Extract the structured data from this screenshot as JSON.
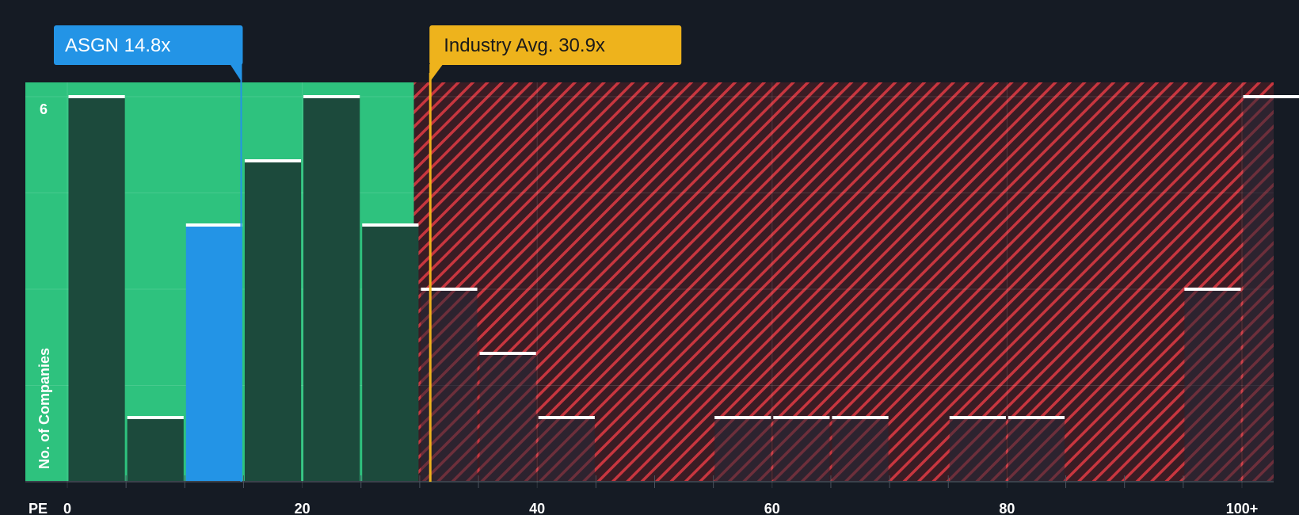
{
  "chart_data": {
    "type": "bar",
    "title": "",
    "xlabel": "PE",
    "ylabel": "No. of Companies",
    "x_ticks": [
      "0",
      "20",
      "40",
      "60",
      "80",
      "100+"
    ],
    "y_ticks": [
      "6"
    ],
    "ylim": [
      0,
      6.2
    ],
    "xlim": [
      0,
      103
    ],
    "grid": true,
    "fair_zone_max": 29.5,
    "bins": [
      {
        "start": 0,
        "end": 5,
        "count": 6
      },
      {
        "start": 5,
        "end": 10,
        "count": 1
      },
      {
        "start": 10,
        "end": 15,
        "count": 4,
        "highlight": true
      },
      {
        "start": 15,
        "end": 20,
        "count": 5
      },
      {
        "start": 20,
        "end": 25,
        "count": 6
      },
      {
        "start": 25,
        "end": 30,
        "count": 4
      },
      {
        "start": 30,
        "end": 35,
        "count": 3
      },
      {
        "start": 35,
        "end": 40,
        "count": 2
      },
      {
        "start": 40,
        "end": 45,
        "count": 1
      },
      {
        "start": 45,
        "end": 50,
        "count": 0
      },
      {
        "start": 50,
        "end": 55,
        "count": 0
      },
      {
        "start": 55,
        "end": 60,
        "count": 1
      },
      {
        "start": 60,
        "end": 65,
        "count": 1
      },
      {
        "start": 65,
        "end": 70,
        "count": 1
      },
      {
        "start": 70,
        "end": 75,
        "count": 0
      },
      {
        "start": 75,
        "end": 80,
        "count": 1
      },
      {
        "start": 80,
        "end": 85,
        "count": 1
      },
      {
        "start": 85,
        "end": 90,
        "count": 0
      },
      {
        "start": 90,
        "end": 95,
        "count": 0
      },
      {
        "start": 95,
        "end": 100,
        "count": 3
      },
      {
        "start": 100,
        "end": 105,
        "count": 6
      }
    ],
    "company": {
      "label": "ASGN 14.8x",
      "value": 14.8,
      "color": "#2394e6"
    },
    "industry": {
      "label": "Industry Avg. 30.9x",
      "value": 30.9,
      "color": "#eeb31c"
    },
    "colors": {
      "background": "#151b24",
      "fair_zone": "#2ec27e",
      "fair_bar": "#1c4a3c",
      "over_zone": "#3a1c24",
      "hatch": "#c8363f",
      "highlight_bar": "#2394e6",
      "bar_cap": "#ffffff"
    }
  }
}
